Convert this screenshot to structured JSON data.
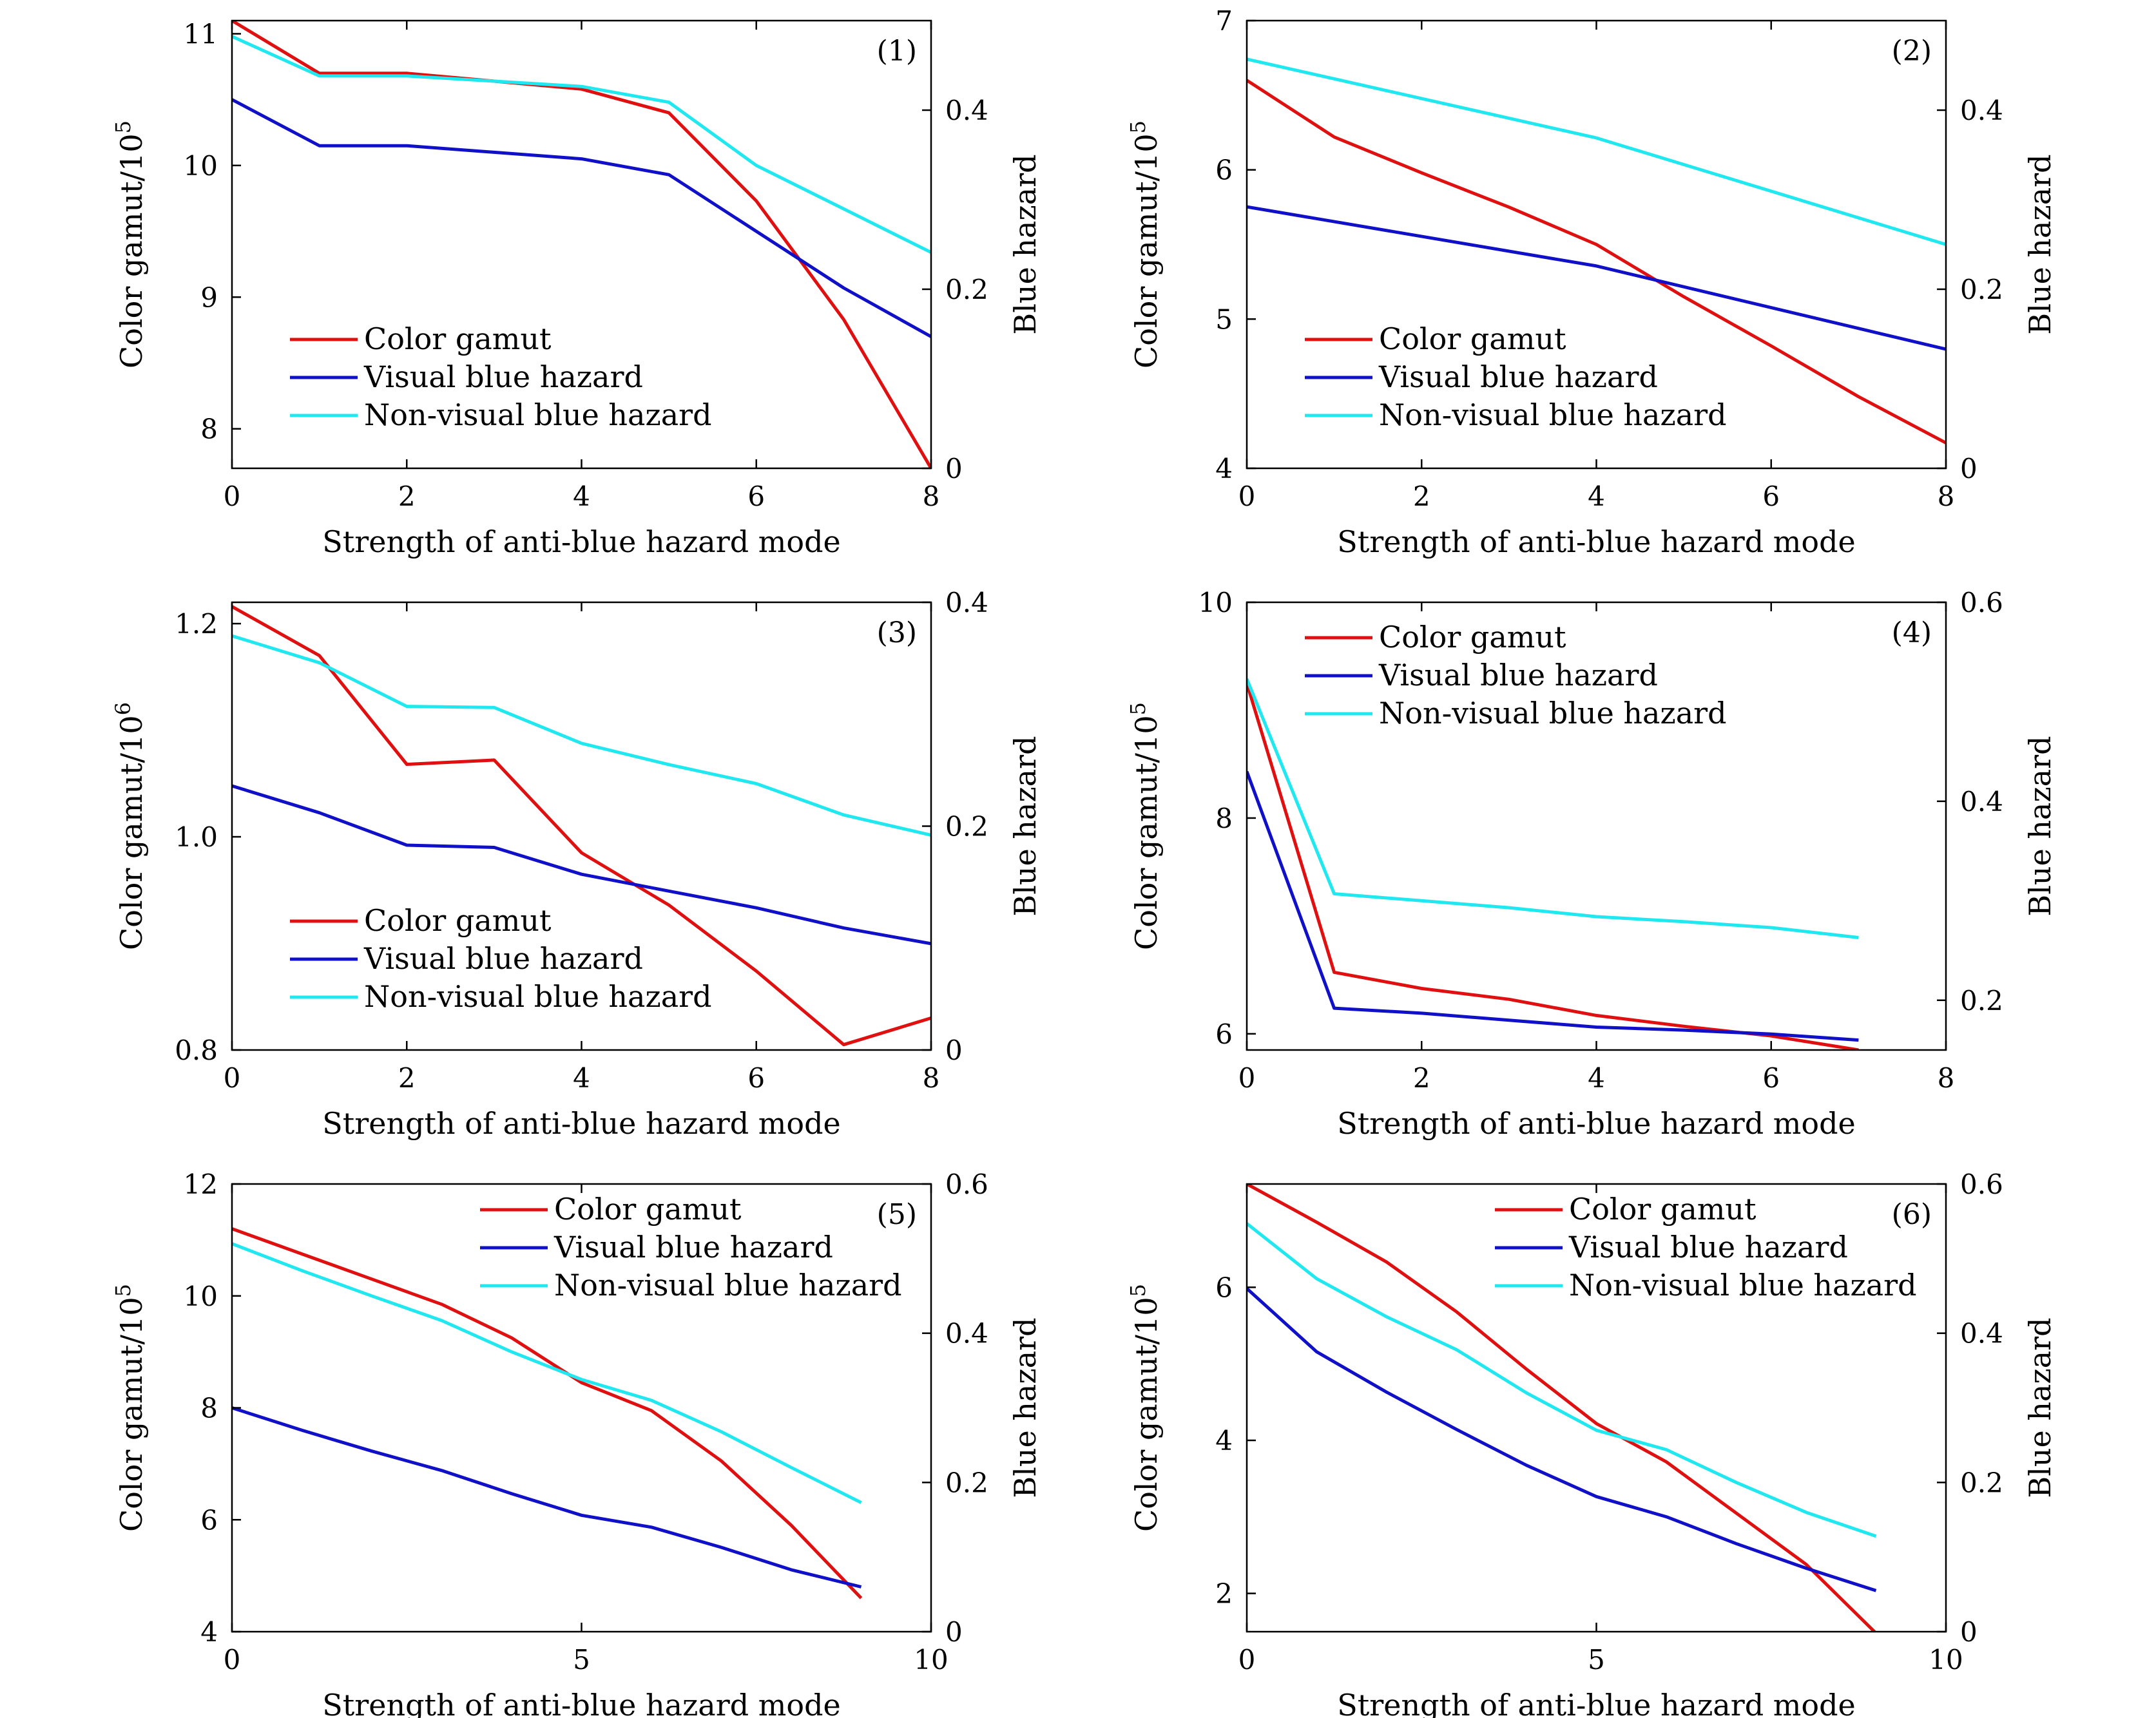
{
  "colors": {
    "color_gamut": "#e01010",
    "visual": "#1010c8",
    "nonvisual": "#20e8f0",
    "axes": "#000000"
  },
  "chart_data": [
    {
      "type": "line",
      "panel_label": "(1)",
      "xlabel": "Strength of anti-blue hazard mode",
      "ylabel_left": "Color gamut/10",
      "ylabel_left_exp": "5",
      "ylabel_right": "Blue hazard",
      "xlim": [
        0,
        8
      ],
      "ylim_left": [
        7.7,
        11.1
      ],
      "ylim_right": [
        0,
        0.5
      ],
      "xticks": [
        0,
        2,
        4,
        6,
        8
      ],
      "xtick_labels": [
        "0",
        "2",
        "4",
        "6",
        "8"
      ],
      "yticks_left": [
        8,
        9,
        10,
        11
      ],
      "ytick_labels_left": [
        "8",
        "9",
        "10",
        "11"
      ],
      "yticks_right": [
        0,
        0.2,
        0.4
      ],
      "ytick_labels_right": [
        "0",
        "0.2",
        "0.4"
      ],
      "legend_position": "bottom-left",
      "series": [
        {
          "name": "Color gamut",
          "axis": "left",
          "color_key": "color_gamut",
          "x": [
            0,
            1,
            2,
            3,
            4,
            5,
            6,
            7,
            8
          ],
          "y": [
            11.1,
            10.7,
            10.7,
            10.64,
            10.58,
            10.4,
            9.73,
            8.83,
            7.7
          ]
        },
        {
          "name": "Visual blue hazard",
          "axis": "left",
          "color_key": "visual",
          "x": [
            0,
            1,
            2,
            3,
            4,
            5,
            6,
            7,
            8
          ],
          "y": [
            10.5,
            10.15,
            10.15,
            10.1,
            10.05,
            9.93,
            9.5,
            9.07,
            8.7
          ]
        },
        {
          "name": "Non-visual blue hazard",
          "axis": "left",
          "color_key": "nonvisual",
          "x": [
            0,
            1,
            2,
            3,
            4,
            5,
            6,
            7,
            8
          ],
          "y": [
            10.98,
            10.68,
            10.68,
            10.64,
            10.6,
            10.48,
            10.0,
            9.67,
            9.34
          ]
        }
      ]
    },
    {
      "type": "line",
      "panel_label": "(2)",
      "xlabel": "Strength of anti-blue hazard mode",
      "ylabel_left": "Color gamut/10",
      "ylabel_left_exp": "5",
      "ylabel_right": "Blue hazard",
      "xlim": [
        0,
        8
      ],
      "ylim_left": [
        4,
        7
      ],
      "ylim_right": [
        0,
        0.5
      ],
      "xticks": [
        0,
        2,
        4,
        6,
        8
      ],
      "xtick_labels": [
        "0",
        "2",
        "4",
        "6",
        "8"
      ],
      "yticks_left": [
        4,
        5,
        6,
        7
      ],
      "ytick_labels_left": [
        "4",
        "5",
        "6",
        "7"
      ],
      "yticks_right": [
        0,
        0.2,
        0.4
      ],
      "ytick_labels_right": [
        "0",
        "0.2",
        "0.4"
      ],
      "legend_position": "bottom-left",
      "series": [
        {
          "name": "Color gamut",
          "axis": "left",
          "color_key": "color_gamut",
          "x": [
            0,
            1,
            2,
            3,
            4,
            5,
            6,
            7,
            8
          ],
          "y": [
            6.6,
            6.22,
            5.98,
            5.75,
            5.5,
            5.15,
            4.82,
            4.48,
            4.17
          ]
        },
        {
          "name": "Visual blue hazard",
          "axis": "right",
          "color_key": "visual",
          "x": [
            0,
            4,
            8
          ],
          "y": [
            0.292,
            0.226,
            0.133
          ]
        },
        {
          "name": "Non-visual blue hazard",
          "axis": "right",
          "color_key": "nonvisual",
          "x": [
            0,
            4,
            8
          ],
          "y": [
            0.457,
            0.369,
            0.25
          ]
        }
      ]
    },
    {
      "type": "line",
      "panel_label": "(3)",
      "xlabel": "Strength of anti-blue hazard mode",
      "ylabel_left": "Color gamut/10",
      "ylabel_left_exp": "6",
      "ylabel_right": "Blue hazard",
      "xlim": [
        0,
        8
      ],
      "ylim_left": [
        0.8,
        1.22
      ],
      "ylim_right": [
        0,
        0.4
      ],
      "xticks": [
        0,
        2,
        4,
        6,
        8
      ],
      "xtick_labels": [
        "0",
        "2",
        "4",
        "6",
        "8"
      ],
      "yticks_left": [
        0.8,
        1.0,
        1.2
      ],
      "ytick_labels_left": [
        "0.8",
        "1.0",
        "1.2"
      ],
      "yticks_right": [
        0,
        0.2,
        0.4
      ],
      "ytick_labels_right": [
        "0",
        "0.2",
        "0.4"
      ],
      "legend_position": "bottom-left",
      "series": [
        {
          "name": "Color gamut",
          "axis": "left",
          "color_key": "color_gamut",
          "x": [
            0,
            1,
            2,
            3,
            4,
            5,
            6,
            7,
            8
          ],
          "y": [
            1.216,
            1.17,
            1.068,
            1.072,
            0.985,
            0.936,
            0.874,
            0.805,
            0.83
          ]
        },
        {
          "name": "Visual blue hazard",
          "axis": "right",
          "color_key": "visual",
          "x": [
            0,
            1,
            2,
            3,
            4,
            5,
            6,
            7,
            8
          ],
          "y": [
            0.236,
            0.212,
            0.183,
            0.181,
            0.157,
            0.142,
            0.127,
            0.109,
            0.095
          ]
        },
        {
          "name": "Non-visual blue hazard",
          "axis": "right",
          "color_key": "nonvisual",
          "x": [
            0,
            1,
            2,
            3,
            4,
            5,
            6,
            7,
            8
          ],
          "y": [
            0.37,
            0.346,
            0.307,
            0.306,
            0.274,
            0.255,
            0.238,
            0.21,
            0.192
          ]
        }
      ]
    },
    {
      "type": "line",
      "panel_label": "(4)",
      "xlabel": "Strength of anti-blue hazard mode",
      "ylabel_left": "Color gamut/10",
      "ylabel_left_exp": "5",
      "ylabel_right": "Blue hazard",
      "xlim": [
        0,
        8
      ],
      "ylim_left": [
        5.85,
        10
      ],
      "ylim_right": [
        0.15,
        0.6
      ],
      "xticks": [
        0,
        2,
        4,
        6,
        8
      ],
      "xtick_labels": [
        "0",
        "2",
        "4",
        "6",
        "8"
      ],
      "yticks_left": [
        6,
        8,
        10
      ],
      "ytick_labels_left": [
        "6",
        "8",
        "10"
      ],
      "yticks_right": [
        0.2,
        0.4,
        0.6
      ],
      "ytick_labels_right": [
        "0.2",
        "0.4",
        "0.6"
      ],
      "legend_position": "top-left",
      "series": [
        {
          "name": "Color gamut",
          "axis": "left",
          "color_key": "color_gamut",
          "x": [
            0,
            1,
            2,
            3,
            4,
            5,
            6,
            7
          ],
          "y": [
            9.25,
            6.57,
            6.42,
            6.32,
            6.17,
            6.07,
            5.98,
            5.85
          ]
        },
        {
          "name": "Visual blue hazard",
          "axis": "right",
          "color_key": "visual",
          "x": [
            0,
            1,
            2,
            3,
            4,
            5,
            6,
            7
          ],
          "y": [
            0.43,
            0.192,
            0.187,
            0.18,
            0.173,
            0.17,
            0.166,
            0.16
          ]
        },
        {
          "name": "Non-visual blue hazard",
          "axis": "right",
          "color_key": "nonvisual",
          "x": [
            0,
            1,
            2,
            3,
            4,
            5,
            6,
            7
          ],
          "y": [
            0.523,
            0.307,
            0.3,
            0.293,
            0.284,
            0.279,
            0.273,
            0.263
          ]
        }
      ]
    },
    {
      "type": "line",
      "panel_label": "(5)",
      "xlabel": "Strength of anti-blue hazard mode",
      "ylabel_left": "Color gamut/10",
      "ylabel_left_exp": "5",
      "ylabel_right": "Blue hazard",
      "xlim": [
        0,
        10
      ],
      "ylim_left": [
        4,
        12
      ],
      "ylim_right": [
        0,
        0.6
      ],
      "xticks": [
        0,
        5,
        10
      ],
      "xtick_labels": [
        "0",
        "5",
        "10"
      ],
      "yticks_left": [
        4,
        6,
        8,
        10,
        12
      ],
      "ytick_labels_left": [
        "4",
        "6",
        "8",
        "10",
        "12"
      ],
      "yticks_right": [
        0,
        0.2,
        0.4,
        0.6
      ],
      "ytick_labels_right": [
        "0",
        "0.2",
        "0.4",
        "0.6"
      ],
      "legend_position": "top-right",
      "series": [
        {
          "name": "Color gamut",
          "axis": "left",
          "color_key": "color_gamut",
          "x": [
            0,
            1,
            2,
            3,
            4,
            5,
            6,
            7,
            8,
            9
          ],
          "y": [
            11.2,
            10.75,
            10.3,
            9.85,
            9.25,
            8.45,
            7.95,
            7.05,
            5.9,
            4.6
          ]
        },
        {
          "name": "Visual blue hazard",
          "axis": "right",
          "color_key": "visual",
          "x": [
            0,
            1,
            2,
            3,
            4,
            5,
            6,
            7,
            8,
            9
          ],
          "y": [
            0.3,
            0.27,
            0.242,
            0.216,
            0.185,
            0.156,
            0.14,
            0.113,
            0.083,
            0.06
          ]
        },
        {
          "name": "Non-visual blue hazard",
          "axis": "right",
          "color_key": "nonvisual",
          "x": [
            0,
            1,
            2,
            3,
            4,
            5,
            6,
            7,
            8,
            9
          ],
          "y": [
            0.52,
            0.484,
            0.45,
            0.417,
            0.375,
            0.338,
            0.31,
            0.268,
            0.22,
            0.173
          ]
        }
      ]
    },
    {
      "type": "line",
      "panel_label": "(6)",
      "xlabel": "Strength of anti-blue hazard mode",
      "ylabel_left": "Color gamut/10",
      "ylabel_left_exp": "5",
      "ylabel_right": "Blue hazard",
      "xlim": [
        0,
        10
      ],
      "ylim_left": [
        1.5,
        7.35
      ],
      "ylim_right": [
        0,
        0.6
      ],
      "xticks": [
        0,
        5,
        10
      ],
      "xtick_labels": [
        "0",
        "5",
        "10"
      ],
      "yticks_left": [
        2,
        4,
        6
      ],
      "ytick_labels_left": [
        "2",
        "4",
        "6"
      ],
      "yticks_right": [
        0,
        0.2,
        0.4,
        0.6
      ],
      "ytick_labels_right": [
        "0",
        "0.2",
        "0.4",
        "0.6"
      ],
      "legend_position": "top-right",
      "series": [
        {
          "name": "Color gamut",
          "axis": "left",
          "color_key": "color_gamut",
          "x": [
            0,
            1,
            2,
            3,
            4,
            5,
            6,
            7,
            8,
            9
          ],
          "y": [
            7.35,
            6.85,
            6.33,
            5.68,
            4.93,
            4.22,
            3.72,
            3.05,
            2.38,
            1.48
          ]
        },
        {
          "name": "Visual blue hazard",
          "axis": "right",
          "color_key": "visual",
          "x": [
            0,
            1,
            2,
            3,
            4,
            5,
            6,
            7,
            8,
            9
          ],
          "y": [
            0.46,
            0.375,
            0.321,
            0.271,
            0.223,
            0.181,
            0.154,
            0.118,
            0.085,
            0.055
          ]
        },
        {
          "name": "Non-visual blue hazard",
          "axis": "right",
          "color_key": "nonvisual",
          "x": [
            0,
            1,
            2,
            3,
            4,
            5,
            6,
            7,
            8,
            9
          ],
          "y": [
            0.547,
            0.473,
            0.422,
            0.378,
            0.32,
            0.27,
            0.244,
            0.2,
            0.16,
            0.128
          ]
        }
      ]
    }
  ]
}
